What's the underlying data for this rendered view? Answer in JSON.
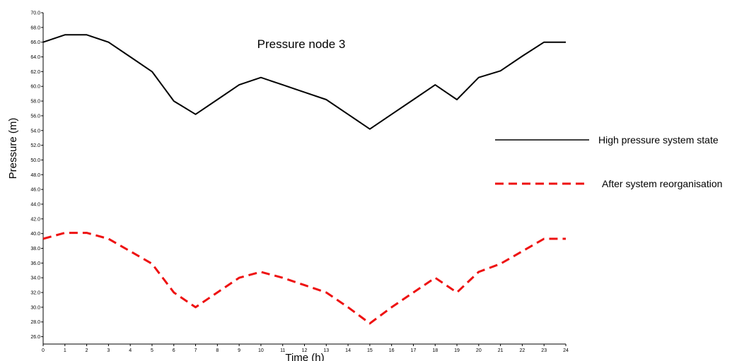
{
  "chart_data": {
    "type": "line",
    "title": "Pressure node 3",
    "xlabel": "Time (h)",
    "ylabel": "Pressure (m)",
    "xlim": [
      0,
      24
    ],
    "ylim": [
      25,
      70
    ],
    "x_ticks": [
      0,
      1,
      2,
      3,
      4,
      5,
      6,
      7,
      8,
      9,
      10,
      11,
      12,
      13,
      14,
      15,
      16,
      17,
      18,
      19,
      20,
      21,
      22,
      23,
      24
    ],
    "y_ticks": [
      26,
      28,
      30,
      32,
      34,
      36,
      38,
      40,
      42,
      44,
      46,
      48,
      50,
      52,
      54,
      56,
      58,
      60,
      62,
      64,
      66,
      68,
      70
    ],
    "grid": false,
    "legend_position": "right",
    "x": [
      0,
      1,
      2,
      3,
      4,
      5,
      6,
      7,
      8,
      9,
      10,
      11,
      12,
      13,
      14,
      15,
      16,
      17,
      18,
      19,
      20,
      21,
      22,
      23,
      24
    ],
    "series": [
      {
        "name": "High pressure system state",
        "color": "#000000",
        "style": "solid",
        "values": [
          66.0,
          67.0,
          67.0,
          66.0,
          64.0,
          62.0,
          58.0,
          56.2,
          58.2,
          60.2,
          61.2,
          60.2,
          59.2,
          58.2,
          56.2,
          54.2,
          56.2,
          58.2,
          60.2,
          58.2,
          61.2,
          62.1,
          64.1,
          66.0,
          66.0
        ]
      },
      {
        "name": "After system reorganisation",
        "color": "#ee1111",
        "style": "dashed",
        "values": [
          39.3,
          40.1,
          40.1,
          39.3,
          37.6,
          35.9,
          32.0,
          30.0,
          32.0,
          34.0,
          34.8,
          34.0,
          33.0,
          32.0,
          30.0,
          27.8,
          30.0,
          32.0,
          34.0,
          32.0,
          34.8,
          35.9,
          37.6,
          39.3,
          39.3
        ]
      }
    ]
  }
}
